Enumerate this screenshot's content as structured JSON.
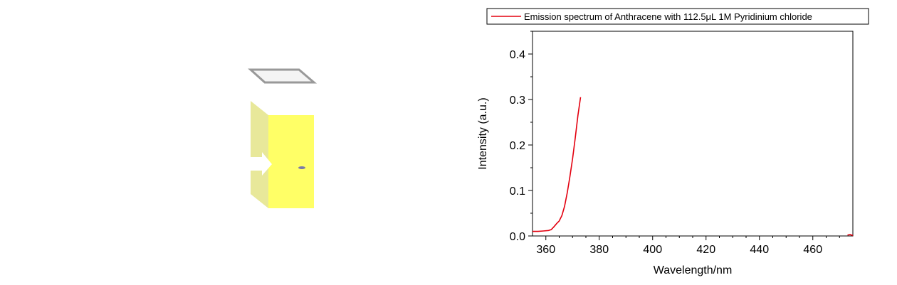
{
  "illustration": {
    "description_icon": "cuvette-icon",
    "colors": {
      "liquid": "#ffff66",
      "liquid_side": "#e8e89a",
      "frame": "#999999",
      "arrow": "#ffffff",
      "dot": "#7a7aa8"
    }
  },
  "chart_data": {
    "type": "line",
    "title": "",
    "xlabel": "Wavelength/nm",
    "ylabel": "Intensity (a.u.)",
    "xlim": [
      355,
      475
    ],
    "ylim": [
      0,
      0.45
    ],
    "xticks": [
      360,
      380,
      400,
      420,
      440,
      460
    ],
    "yticks": [
      0.0,
      0.1,
      0.2,
      0.3,
      0.4
    ],
    "xtick_labels": [
      "360",
      "380",
      "400",
      "420",
      "440",
      "460"
    ],
    "ytick_labels": [
      "0.0",
      "0.1",
      "0.2",
      "0.3",
      "0.4"
    ],
    "grid": false,
    "legend": {
      "placement": "top",
      "entries": [
        "Emission spectrum of Anthracene with 112.5μL 1M Pyridinium chloride"
      ]
    },
    "series": [
      {
        "name": "Emission spectrum of Anthracene with 112.5μL 1M Pyridinium chloride",
        "color": "#e3000f",
        "points": [
          [
            355,
            0.01
          ],
          [
            357,
            0.01
          ],
          [
            359,
            0.011
          ],
          [
            361,
            0.012
          ],
          [
            362,
            0.014
          ],
          [
            363,
            0.02
          ],
          [
            364,
            0.027
          ],
          [
            365,
            0.033
          ],
          [
            366,
            0.045
          ],
          [
            367,
            0.065
          ],
          [
            368,
            0.095
          ],
          [
            369,
            0.13
          ],
          [
            370,
            0.17
          ],
          [
            371,
            0.215
          ],
          [
            372,
            0.265
          ],
          [
            373,
            0.305
          ]
        ]
      },
      {
        "name": "",
        "color": "#e3000f",
        "points": [
          [
            473,
            0.002
          ],
          [
            474,
            0.003
          ],
          [
            475,
            0.001
          ]
        ]
      }
    ]
  }
}
